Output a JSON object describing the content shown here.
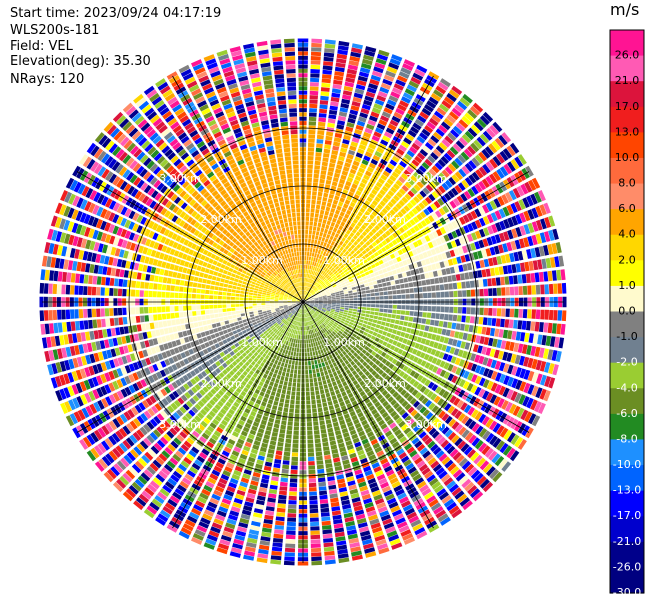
{
  "header": {
    "start_time": "Start time: 2023/09/24 04:17:19",
    "site": "WLS200s-181",
    "field": "Field: VEL",
    "elevation": "Elevation(deg): 35.30",
    "nrays": "NRays: 120"
  },
  "chart_data": {
    "type": "ppi",
    "field": "VEL",
    "nrays": 120,
    "range_unit": "km",
    "range_rings": [
      1.0,
      2.0,
      3.0
    ],
    "range_ring_labels": [
      "1.00km",
      "2.00km",
      "3.00km"
    ],
    "max_range_km": 4.5,
    "spokes_deg": [
      0,
      30,
      60,
      90,
      120,
      150,
      180,
      210,
      240,
      270,
      300,
      330
    ],
    "vel_pattern": {
      "max_abs": 6.5,
      "approach_azimuth_deg": 165,
      "recede_azimuth_deg": 345,
      "clean_range_km": 2.6,
      "noise_start_km": 3.0
    },
    "colorbar": {
      "unit": "m/s",
      "tick_labels": [
        "26.0",
        "21.0",
        "17.0",
        "13.0",
        "10.0",
        "8.0",
        "6.0",
        "4.0",
        "2.0",
        "1.0",
        "0.0",
        "-1.0",
        "-2.0",
        "-4.0",
        "-6.0",
        "-8.0",
        "-10.0",
        "-13.0",
        "-17.0",
        "-21.0",
        "-26.0",
        "-30.0"
      ],
      "bounds": [
        30,
        26,
        21,
        17,
        13,
        10,
        8,
        6,
        4,
        2,
        1,
        0,
        -1,
        -2,
        -4,
        -6,
        -8,
        -10,
        -13,
        -17,
        -21,
        -26,
        -30
      ],
      "colors": [
        "#ff1493",
        "#ff5ab4",
        "#dc143c",
        "#f01e1e",
        "#ff4500",
        "#ff6a3c",
        "#ff8c69",
        "#ffa500",
        "#ffd700",
        "#ffff00",
        "#fffacd",
        "#808080",
        "#708090",
        "#9acd32",
        "#6b8e23",
        "#228b22",
        "#1e90ff",
        "#0064ff",
        "#0000ff",
        "#0000cd",
        "#00008b",
        "#000080"
      ]
    }
  }
}
